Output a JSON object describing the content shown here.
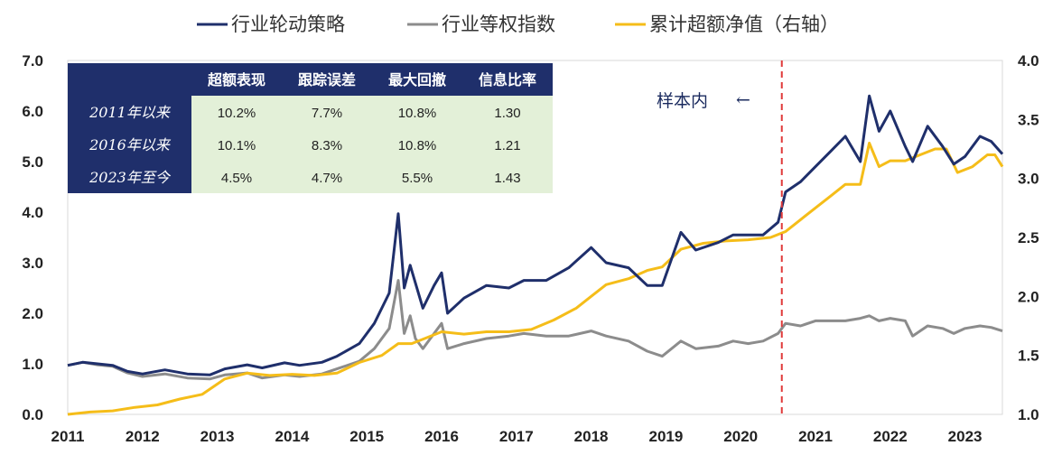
{
  "chart_data": {
    "type": "line",
    "legend": {
      "placement": "top-center",
      "entries": [
        "行业轮动策略",
        "行业等权指数",
        "累计超额净值（右轴）"
      ]
    },
    "x": [
      "2011",
      "2012",
      "2013",
      "2014",
      "2015",
      "2016",
      "2017",
      "2018",
      "2019",
      "2020",
      "2021",
      "2022",
      "2023"
    ],
    "xlim": [
      2011.0,
      2023.5
    ],
    "y_left": {
      "ticks": [
        "0.0",
        "1.0",
        "2.0",
        "3.0",
        "4.0",
        "5.0",
        "6.0",
        "7.0"
      ],
      "lim": [
        0,
        7
      ]
    },
    "y_right": {
      "ticks": [
        "1.0",
        "1.5",
        "2.0",
        "2.5",
        "3.0",
        "3.5",
        "4.0"
      ],
      "lim": [
        1,
        4
      ]
    },
    "series": [
      {
        "name": "行业轮动策略",
        "axis": "left",
        "color": "#1f2f6b",
        "points": [
          [
            2011.0,
            0.97
          ],
          [
            2011.2,
            1.03
          ],
          [
            2011.4,
            1.0
          ],
          [
            2011.6,
            0.97
          ],
          [
            2011.8,
            0.85
          ],
          [
            2012.0,
            0.8
          ],
          [
            2012.3,
            0.88
          ],
          [
            2012.6,
            0.8
          ],
          [
            2012.9,
            0.78
          ],
          [
            2013.1,
            0.9
          ],
          [
            2013.4,
            0.98
          ],
          [
            2013.6,
            0.92
          ],
          [
            2013.9,
            1.02
          ],
          [
            2014.1,
            0.97
          ],
          [
            2014.4,
            1.03
          ],
          [
            2014.6,
            1.15
          ],
          [
            2014.9,
            1.4
          ],
          [
            2015.1,
            1.8
          ],
          [
            2015.3,
            2.4
          ],
          [
            2015.42,
            3.97
          ],
          [
            2015.5,
            2.5
          ],
          [
            2015.58,
            2.95
          ],
          [
            2015.65,
            2.6
          ],
          [
            2015.75,
            2.1
          ],
          [
            2015.9,
            2.55
          ],
          [
            2016.0,
            2.8
          ],
          [
            2016.08,
            2.0
          ],
          [
            2016.3,
            2.3
          ],
          [
            2016.6,
            2.55
          ],
          [
            2016.9,
            2.5
          ],
          [
            2017.1,
            2.65
          ],
          [
            2017.4,
            2.65
          ],
          [
            2017.7,
            2.9
          ],
          [
            2018.0,
            3.3
          ],
          [
            2018.2,
            3.0
          ],
          [
            2018.5,
            2.9
          ],
          [
            2018.75,
            2.55
          ],
          [
            2018.95,
            2.55
          ],
          [
            2019.2,
            3.6
          ],
          [
            2019.4,
            3.25
          ],
          [
            2019.7,
            3.4
          ],
          [
            2019.9,
            3.55
          ],
          [
            2020.1,
            3.55
          ],
          [
            2020.3,
            3.55
          ],
          [
            2020.5,
            3.8
          ],
          [
            2020.6,
            4.4
          ],
          [
            2020.8,
            4.6
          ],
          [
            2021.0,
            4.9
          ],
          [
            2021.2,
            5.2
          ],
          [
            2021.4,
            5.5
          ],
          [
            2021.6,
            5.0
          ],
          [
            2021.72,
            6.3
          ],
          [
            2021.85,
            5.6
          ],
          [
            2022.0,
            6.0
          ],
          [
            2022.2,
            5.3
          ],
          [
            2022.3,
            5.0
          ],
          [
            2022.5,
            5.7
          ],
          [
            2022.7,
            5.3
          ],
          [
            2022.85,
            4.95
          ],
          [
            2023.0,
            5.1
          ],
          [
            2023.2,
            5.5
          ],
          [
            2023.35,
            5.4
          ],
          [
            2023.5,
            5.15
          ]
        ]
      },
      {
        "name": "行业等权指数",
        "axis": "left",
        "color": "#8c8c8c",
        "points": [
          [
            2011.0,
            0.97
          ],
          [
            2011.2,
            1.03
          ],
          [
            2011.4,
            0.98
          ],
          [
            2011.6,
            0.95
          ],
          [
            2011.8,
            0.82
          ],
          [
            2012.0,
            0.75
          ],
          [
            2012.3,
            0.8
          ],
          [
            2012.6,
            0.72
          ],
          [
            2012.9,
            0.7
          ],
          [
            2013.1,
            0.78
          ],
          [
            2013.4,
            0.82
          ],
          [
            2013.6,
            0.72
          ],
          [
            2013.9,
            0.78
          ],
          [
            2014.1,
            0.75
          ],
          [
            2014.4,
            0.8
          ],
          [
            2014.6,
            0.9
          ],
          [
            2014.9,
            1.05
          ],
          [
            2015.1,
            1.3
          ],
          [
            2015.3,
            1.7
          ],
          [
            2015.42,
            2.65
          ],
          [
            2015.5,
            1.6
          ],
          [
            2015.58,
            1.95
          ],
          [
            2015.65,
            1.5
          ],
          [
            2015.75,
            1.3
          ],
          [
            2015.9,
            1.6
          ],
          [
            2016.0,
            1.8
          ],
          [
            2016.08,
            1.3
          ],
          [
            2016.3,
            1.4
          ],
          [
            2016.6,
            1.5
          ],
          [
            2016.9,
            1.55
          ],
          [
            2017.1,
            1.6
          ],
          [
            2017.4,
            1.55
          ],
          [
            2017.7,
            1.55
          ],
          [
            2018.0,
            1.65
          ],
          [
            2018.2,
            1.55
          ],
          [
            2018.5,
            1.45
          ],
          [
            2018.75,
            1.25
          ],
          [
            2018.95,
            1.15
          ],
          [
            2019.2,
            1.45
          ],
          [
            2019.4,
            1.3
          ],
          [
            2019.7,
            1.35
          ],
          [
            2019.9,
            1.45
          ],
          [
            2020.1,
            1.4
          ],
          [
            2020.3,
            1.45
          ],
          [
            2020.5,
            1.6
          ],
          [
            2020.6,
            1.8
          ],
          [
            2020.8,
            1.75
          ],
          [
            2021.0,
            1.85
          ],
          [
            2021.2,
            1.85
          ],
          [
            2021.4,
            1.85
          ],
          [
            2021.6,
            1.9
          ],
          [
            2021.72,
            1.95
          ],
          [
            2021.85,
            1.85
          ],
          [
            2022.0,
            1.9
          ],
          [
            2022.2,
            1.85
          ],
          [
            2022.3,
            1.55
          ],
          [
            2022.5,
            1.75
          ],
          [
            2022.7,
            1.7
          ],
          [
            2022.85,
            1.6
          ],
          [
            2023.0,
            1.7
          ],
          [
            2023.2,
            1.75
          ],
          [
            2023.35,
            1.72
          ],
          [
            2023.5,
            1.65
          ]
        ]
      },
      {
        "name": "累计超额净值（右轴）",
        "axis": "right",
        "color": "#f5bd19",
        "points": [
          [
            2011.0,
            1.0
          ],
          [
            2011.3,
            1.02
          ],
          [
            2011.6,
            1.03
          ],
          [
            2011.9,
            1.06
          ],
          [
            2012.2,
            1.08
          ],
          [
            2012.5,
            1.13
          ],
          [
            2012.8,
            1.17
          ],
          [
            2013.1,
            1.3
          ],
          [
            2013.4,
            1.35
          ],
          [
            2013.7,
            1.33
          ],
          [
            2014.0,
            1.34
          ],
          [
            2014.3,
            1.33
          ],
          [
            2014.6,
            1.35
          ],
          [
            2014.9,
            1.44
          ],
          [
            2015.2,
            1.5
          ],
          [
            2015.42,
            1.6
          ],
          [
            2015.6,
            1.6
          ],
          [
            2015.8,
            1.65
          ],
          [
            2016.0,
            1.7
          ],
          [
            2016.3,
            1.68
          ],
          [
            2016.6,
            1.7
          ],
          [
            2016.9,
            1.7
          ],
          [
            2017.2,
            1.72
          ],
          [
            2017.5,
            1.8
          ],
          [
            2017.8,
            1.9
          ],
          [
            2018.0,
            2.0
          ],
          [
            2018.2,
            2.1
          ],
          [
            2018.5,
            2.15
          ],
          [
            2018.75,
            2.22
          ],
          [
            2018.95,
            2.25
          ],
          [
            2019.2,
            2.4
          ],
          [
            2019.5,
            2.45
          ],
          [
            2019.8,
            2.47
          ],
          [
            2020.1,
            2.48
          ],
          [
            2020.4,
            2.5
          ],
          [
            2020.6,
            2.55
          ],
          [
            2020.8,
            2.65
          ],
          [
            2021.0,
            2.75
          ],
          [
            2021.2,
            2.85
          ],
          [
            2021.4,
            2.95
          ],
          [
            2021.6,
            2.95
          ],
          [
            2021.72,
            3.3
          ],
          [
            2021.85,
            3.1
          ],
          [
            2022.0,
            3.15
          ],
          [
            2022.2,
            3.15
          ],
          [
            2022.4,
            3.2
          ],
          [
            2022.6,
            3.25
          ],
          [
            2022.75,
            3.25
          ],
          [
            2022.9,
            3.05
          ],
          [
            2023.1,
            3.1
          ],
          [
            2023.3,
            3.2
          ],
          [
            2023.4,
            3.2
          ],
          [
            2023.5,
            3.1
          ]
        ]
      }
    ],
    "marker": {
      "x": 2020.55,
      "style": "dashed",
      "color": "#e03a3a",
      "label": "样本内",
      "arrow": "←"
    },
    "table": {
      "columns": [
        "",
        "超额表现",
        "跟踪误差",
        "最大回撤",
        "信息比率"
      ],
      "rows": [
        {
          "label": "2011年以来",
          "values": [
            "10.2%",
            "7.7%",
            "10.8%",
            "1.30"
          ]
        },
        {
          "label": "2016年以来",
          "values": [
            "10.1%",
            "8.3%",
            "10.8%",
            "1.21"
          ]
        },
        {
          "label": "2023年至今",
          "values": [
            "4.5%",
            "4.7%",
            "5.5%",
            "1.43"
          ]
        }
      ],
      "header_color": "#1f2f6b",
      "cell_color": "#e3f0d8"
    }
  }
}
